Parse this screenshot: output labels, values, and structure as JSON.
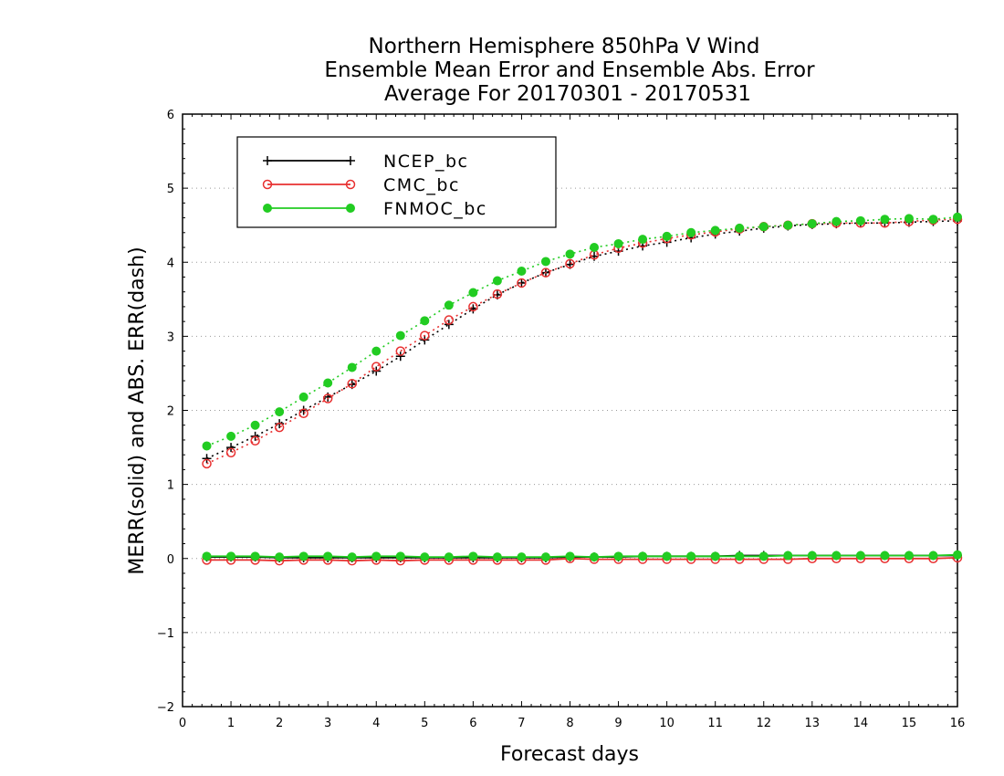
{
  "chart_data": {
    "type": "line",
    "title_lines": [
      "Northern Hemisphere 850hPa V Wind",
      "Ensemble Mean Error and Ensemble Abs. Error",
      "Average For 20170301 - 20170531"
    ],
    "xlabel": "Forecast days",
    "ylabel": "MERR(solid) and ABS. ERR(dash)",
    "xlim": [
      0,
      16
    ],
    "ylim": [
      -2,
      6
    ],
    "x_ticks": [
      "0",
      "1",
      "2",
      "3",
      "4",
      "5",
      "6",
      "7",
      "8",
      "9",
      "10",
      "11",
      "12",
      "13",
      "14",
      "15",
      "16"
    ],
    "y_ticks": [
      "-2",
      "-1",
      "0",
      "1",
      "2",
      "3",
      "4",
      "5",
      "6"
    ],
    "grid": "horizontal dotted",
    "legend_position": "top-left",
    "x": [
      0.5,
      1,
      1.5,
      2,
      2.5,
      3,
      3.5,
      4,
      4.5,
      5,
      5.5,
      6,
      6.5,
      7,
      7.5,
      8,
      8.5,
      9,
      9.5,
      10,
      10.5,
      11,
      11.5,
      12,
      12.5,
      13,
      13.5,
      14,
      14.5,
      15,
      15.5,
      16
    ],
    "series": [
      {
        "name": "NCEP_bc",
        "color": "#000000",
        "marker": "plus",
        "merr": [
          0.02,
          0.02,
          0.02,
          0.01,
          0.01,
          0.01,
          0.01,
          0.01,
          0.01,
          0.01,
          0.01,
          0.01,
          0.01,
          0.01,
          0.01,
          0.02,
          0.02,
          0.02,
          0.03,
          0.03,
          0.03,
          0.03,
          0.04,
          0.04,
          0.04,
          0.04,
          0.04,
          0.04,
          0.04,
          0.04,
          0.04,
          0.04
        ],
        "abs_err": [
          1.35,
          1.5,
          1.65,
          1.82,
          2.0,
          2.18,
          2.35,
          2.53,
          2.73,
          2.95,
          3.16,
          3.37,
          3.56,
          3.72,
          3.86,
          3.97,
          4.08,
          4.15,
          4.22,
          4.27,
          4.33,
          4.38,
          4.42,
          4.46,
          4.49,
          4.51,
          4.52,
          4.53,
          4.53,
          4.54,
          4.55,
          4.56
        ]
      },
      {
        "name": "CMC_bc",
        "color": "#e83030",
        "marker": "open-circle",
        "merr": [
          -0.02,
          -0.02,
          -0.02,
          -0.03,
          -0.02,
          -0.02,
          -0.03,
          -0.02,
          -0.03,
          -0.02,
          -0.02,
          -0.02,
          -0.02,
          -0.02,
          -0.02,
          0.0,
          -0.01,
          -0.01,
          -0.01,
          -0.01,
          -0.01,
          -0.01,
          -0.01,
          -0.01,
          -0.01,
          0.0,
          0.0,
          0.0,
          0.0,
          0.0,
          0.0,
          0.01
        ],
        "abs_err": [
          1.28,
          1.43,
          1.59,
          1.77,
          1.96,
          2.16,
          2.36,
          2.59,
          2.8,
          3.01,
          3.22,
          3.4,
          3.57,
          3.72,
          3.86,
          3.98,
          4.1,
          4.19,
          4.26,
          4.32,
          4.37,
          4.41,
          4.45,
          4.48,
          4.5,
          4.52,
          4.53,
          4.53,
          4.53,
          4.55,
          4.57,
          4.58
        ]
      },
      {
        "name": "FNMOC_bc",
        "color": "#22cc22",
        "marker": "filled-circle",
        "merr": [
          0.03,
          0.03,
          0.03,
          0.02,
          0.03,
          0.03,
          0.02,
          0.03,
          0.03,
          0.02,
          0.02,
          0.03,
          0.02,
          0.02,
          0.02,
          0.03,
          0.02,
          0.03,
          0.03,
          0.03,
          0.03,
          0.03,
          0.03,
          0.03,
          0.04,
          0.04,
          0.04,
          0.04,
          0.04,
          0.04,
          0.04,
          0.05
        ],
        "abs_err": [
          1.52,
          1.65,
          1.8,
          1.98,
          2.18,
          2.37,
          2.58,
          2.8,
          3.01,
          3.21,
          3.42,
          3.59,
          3.75,
          3.88,
          4.01,
          4.11,
          4.2,
          4.25,
          4.31,
          4.35,
          4.4,
          4.43,
          4.46,
          4.48,
          4.5,
          4.52,
          4.55,
          4.56,
          4.58,
          4.59,
          4.58,
          4.61
        ]
      }
    ]
  }
}
